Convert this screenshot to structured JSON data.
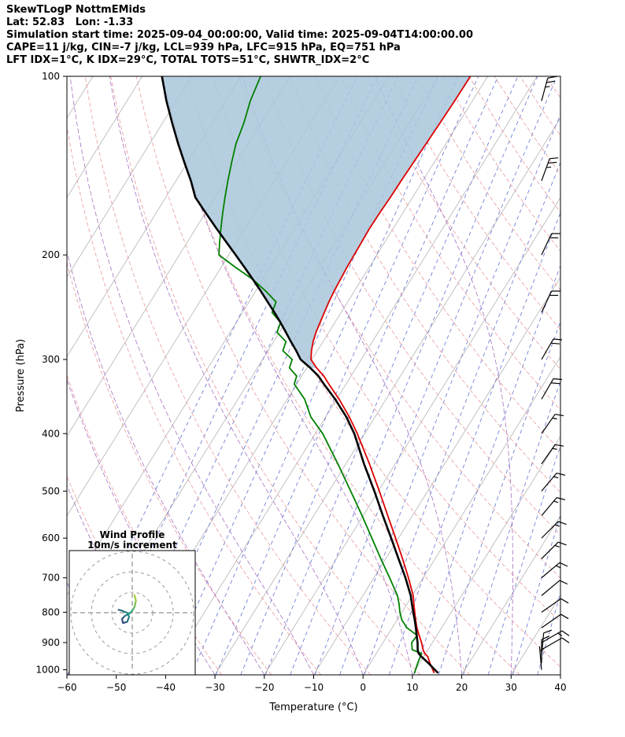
{
  "header": {
    "title": "SkewTLogP NottmEMids",
    "location": "Lat: 52.83   Lon: -1.33",
    "times": "Simulation start time: 2025-09-04_00:00:00, Valid time: 2025-09-04T14:00:00.00",
    "indices1": "CAPE=11 j/kg, CIN=-7 j/kg, LCL=939 hPa, LFC=915 hPa, EQ=751 hPa",
    "indices2": "LFT IDX=1°C, K IDX=29°C, TOTAL TOTS=51°C, SHWTR_IDX=2°C"
  },
  "inset": {
    "title_line1": "Wind Profile",
    "title_line2": "10m/s increment"
  },
  "colors": {
    "temperature": "#dd0000",
    "dewpoint": "#008000",
    "parcel": "#000000",
    "cape_fill": "#a9c7db",
    "isotherm": "#b3b3b3",
    "dry_adiabat": "#e89999",
    "moist_adiabat": "#a671c2",
    "mixing_ratio": "#7381d4",
    "wind_barb": "#000000",
    "frame": "#000000",
    "hodo_ring": "#999999",
    "hodo_cross": "#777777"
  },
  "chart_data": {
    "type": "skewt_logp",
    "x_axis": {
      "label": "Temperature (°C)",
      "range": [
        -60,
        40
      ],
      "tick_values": [
        -60,
        -50,
        -40,
        -30,
        -20,
        -10,
        0,
        10,
        20,
        30,
        40
      ],
      "tick_labels": [
        "−60",
        "−50",
        "−40",
        "−30",
        "−20",
        "−10",
        "0",
        "10",
        "20",
        "30",
        "40"
      ]
    },
    "y_axis": {
      "label": "Pressure (hPa)",
      "range": [
        1020,
        100
      ],
      "tick_values": [
        100,
        200,
        300,
        400,
        500,
        600,
        700,
        800,
        900,
        1000
      ],
      "tick_labels": [
        "100",
        "200",
        "300",
        "400",
        "500",
        "600",
        "700",
        "800",
        "900",
        "1000"
      ]
    },
    "indices": {
      "CAPE_j_kg": 11,
      "CIN_j_kg": -7,
      "LCL_hPa": 939,
      "LFC_hPa": 915,
      "EQ_hPa": 751,
      "LFT_IDX_C": 1,
      "K_IDX_C": 29,
      "TOTAL_TOTS_C": 51,
      "SHWTR_IDX_C": 2
    },
    "profiles": {
      "pressure_hPa": [
        1013,
        1000,
        975,
        950,
        939,
        925,
        900,
        875,
        850,
        825,
        800,
        775,
        750,
        700,
        650,
        600,
        550,
        500,
        450,
        400,
        375,
        350,
        330,
        320,
        310,
        300,
        290,
        280,
        270,
        260,
        250,
        240,
        230,
        220,
        210,
        200,
        190,
        180,
        170,
        160,
        150,
        140,
        130,
        120,
        110,
        100
      ],
      "temperature_C": [
        14.2,
        13.5,
        12.1,
        10.8,
        9.8,
        9.0,
        7.8,
        6.4,
        5.0,
        3.8,
        2.6,
        1.4,
        0.2,
        -3.0,
        -6.6,
        -10.6,
        -15.0,
        -19.8,
        -25.2,
        -31.5,
        -35.2,
        -39.5,
        -43.5,
        -45.5,
        -48.0,
        -50.2,
        -51.2,
        -52.0,
        -52.6,
        -53.0,
        -53.4,
        -53.8,
        -54.1,
        -54.3,
        -54.5,
        -54.6,
        -54.7,
        -54.8,
        -54.7,
        -54.5,
        -54.4,
        -54.2,
        -54.0,
        -53.8,
        -53.6,
        -53.5
      ],
      "dewpoint_C": [
        10.2,
        10.0,
        9.6,
        9.3,
        9.2,
        6.8,
        5.8,
        6.0,
        3.0,
        1.0,
        -0.4,
        -1.6,
        -3.0,
        -6.8,
        -11.0,
        -15.4,
        -20.2,
        -25.6,
        -31.6,
        -38.5,
        -43.0,
        -46.5,
        -50.5,
        -51.0,
        -53.5,
        -54.0,
        -57.0,
        -57.5,
        -60.5,
        -61.0,
        -64.0,
        -64.5,
        -68.0,
        -72.0,
        -77.0,
        -82.0,
        -83.5,
        -85.0,
        -86.5,
        -88.0,
        -89.5,
        -91.0,
        -92.5,
        -93.5,
        -95.0,
        -96.0
      ],
      "parcel_C": [
        15.0,
        13.9,
        11.8,
        9.5,
        8.6,
        7.9,
        7.0,
        5.9,
        4.8,
        3.6,
        2.3,
        1.0,
        -0.3,
        -3.6,
        -7.4,
        -11.5,
        -16.0,
        -20.8,
        -26.3,
        -32.1,
        -35.8,
        -40.3,
        -44.5,
        -46.6,
        -49.3,
        -52.3,
        -54.3,
        -56.5,
        -58.7,
        -61.0,
        -63.5,
        -66.2,
        -69.0,
        -72.0,
        -75.2,
        -78.6,
        -82.2,
        -86.0,
        -89.9,
        -94.0,
        -97.0,
        -100.5,
        -104.2,
        -108.0,
        -112.0,
        -116.0
      ],
      "shade_below_hPa": 310
    },
    "background": {
      "isotherms_C": {
        "min": -140,
        "max": 40,
        "step": 10
      },
      "dry_adiabats_C": {
        "min": -40,
        "max": 330,
        "step": 10
      },
      "moist_adiabats_C": {
        "min": -60,
        "max": 40,
        "step": 10
      },
      "mixing_ratio_dewpoints_C": {
        "min": -60,
        "max": 40,
        "step": 5
      }
    },
    "winds": [
      {
        "p": 110,
        "dir": 15,
        "spd": 25
      },
      {
        "p": 150,
        "dir": 20,
        "spd": 23
      },
      {
        "p": 200,
        "dir": 25,
        "spd": 22
      },
      {
        "p": 250,
        "dir": 25,
        "spd": 20
      },
      {
        "p": 300,
        "dir": 30,
        "spd": 18
      },
      {
        "p": 350,
        "dir": 30,
        "spd": 18
      },
      {
        "p": 400,
        "dir": 35,
        "spd": 17
      },
      {
        "p": 450,
        "dir": 35,
        "spd": 16
      },
      {
        "p": 500,
        "dir": 40,
        "spd": 15
      },
      {
        "p": 550,
        "dir": 40,
        "spd": 15
      },
      {
        "p": 600,
        "dir": 45,
        "spd": 14
      },
      {
        "p": 650,
        "dir": 45,
        "spd": 13
      },
      {
        "p": 700,
        "dir": 50,
        "spd": 13
      },
      {
        "p": 750,
        "dir": 50,
        "spd": 12
      },
      {
        "p": 800,
        "dir": 55,
        "spd": 12
      },
      {
        "p": 850,
        "dir": 55,
        "spd": 12
      },
      {
        "p": 900,
        "dir": 60,
        "spd": 13
      },
      {
        "p": 925,
        "dir": 60,
        "spd": 12
      },
      {
        "p": 950,
        "dir": 5,
        "spd": 10
      },
      {
        "p": 975,
        "dir": 0,
        "spd": 8
      },
      {
        "p": 1000,
        "dir": 355,
        "spd": 6
      }
    ],
    "barb_full_ms": 10,
    "hodograph": {
      "rings_ms": [
        10,
        20,
        30
      ],
      "trace_uv_ms": [
        [
          1.0,
          9.0
        ],
        [
          1.8,
          6.0
        ],
        [
          1.2,
          3.0
        ],
        [
          0.0,
          1.0
        ],
        [
          -1.5,
          -0.5
        ],
        [
          -3.5,
          -1.5
        ],
        [
          -5.0,
          -3.0
        ],
        [
          -4.5,
          -5.0
        ],
        [
          -2.5,
          -4.5
        ],
        [
          -1.5,
          -2.0
        ],
        [
          -2.5,
          0.0
        ],
        [
          -5.0,
          1.0
        ],
        [
          -7.0,
          1.5
        ]
      ]
    }
  }
}
